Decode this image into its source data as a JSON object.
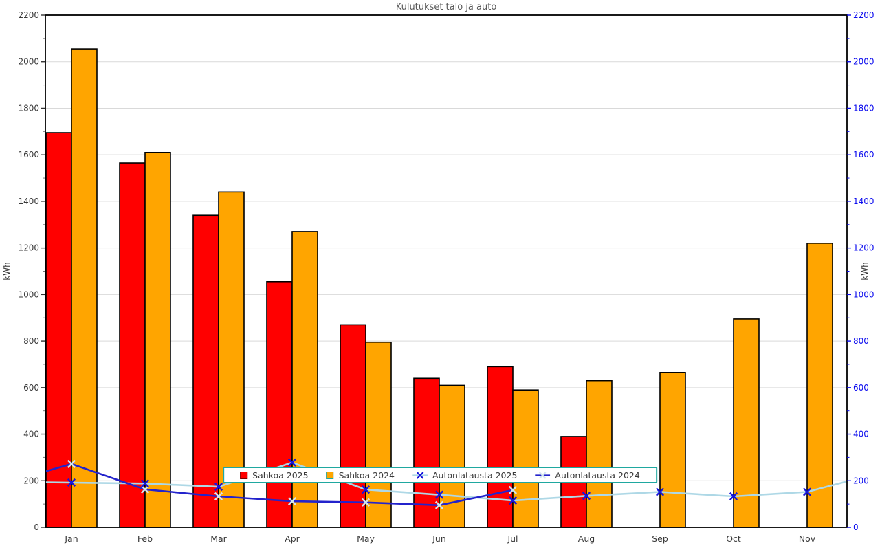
{
  "title": "Kulutukset talo ja auto",
  "chart_data": {
    "type": "combo: grouped bars + lines with x markers",
    "title": "Kulutukset talo ja auto",
    "categories": [
      "Jan",
      "Feb",
      "Mar",
      "Apr",
      "May",
      "Jun",
      "Jul",
      "Aug",
      "Sep",
      "Oct",
      "Nov"
    ],
    "ylabel_left": "kWh",
    "ylabel_right": "kWh",
    "ylim": [
      0,
      2200
    ],
    "ytick_major_step": 200,
    "ytick_minor_step": 100,
    "grid": "horizontal major gridlines only",
    "legend_position": "bottom center, inside plot",
    "series": [
      {
        "name": "Sahkoa 2025",
        "type": "bar",
        "color": "#ff0000",
        "edge_color": "#000000",
        "values": [
          1695,
          1565,
          1340,
          1055,
          870,
          640,
          690,
          390,
          null,
          null,
          null
        ]
      },
      {
        "name": "Sahkoa 2024",
        "type": "bar",
        "color": "#ffa500",
        "edge_color": "#000000",
        "values": [
          2055,
          1610,
          1440,
          1270,
          795,
          610,
          590,
          630,
          665,
          895,
          1220
        ]
      },
      {
        "name": "Autonlatausta 2025",
        "type": "line",
        "line_color": "#aed8e6",
        "marker": "x",
        "marker_color": "#1414dd",
        "values": [
          192,
          188,
          174,
          278,
          162,
          140,
          115,
          135,
          152,
          133,
          152
        ],
        "edge_left_value": 193,
        "edge_right_value": 197
      },
      {
        "name": "Autonlatausta 2024",
        "type": "line",
        "line_color": "#2323cc",
        "marker": "x",
        "marker_color": "#d3e5ef",
        "values": [
          272,
          163,
          133,
          112,
          107,
          95,
          160,
          null,
          null,
          null,
          null
        ],
        "edge_left_value": 240,
        "edge_right_value": null
      }
    ],
    "colors": {
      "left_axis_labels": "#3a3a3a",
      "right_axis_labels": "#0b0bee",
      "title": "#595959",
      "grid": "#d9d9d9",
      "spine": "#000000",
      "legend_border": "#1fa8a0",
      "month_labels": "#3a3a3a"
    }
  }
}
